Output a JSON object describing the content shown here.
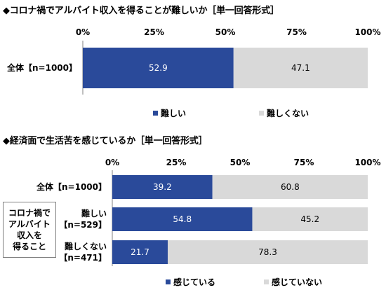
{
  "colors": {
    "primary": "#2a4a9a",
    "secondary": "#d9d9d9",
    "primary_text": "#ffffff",
    "secondary_text": "#000000"
  },
  "chart_data": [
    {
      "type": "bar",
      "orientation": "horizontal",
      "stacked": "100%",
      "title": "◆コロナ禍でアルバイト収入を得ることが難しいか［単一回答形式］",
      "xticks": [
        "0%",
        "25%",
        "50%",
        "75%",
        "100%"
      ],
      "xlim": [
        0,
        100
      ],
      "categories": [
        "全体【n=1000】"
      ],
      "series": [
        {
          "name": "難しい",
          "values": [
            52.9
          ],
          "color": "#2a4a9a"
        },
        {
          "name": "難しくない",
          "values": [
            47.1
          ],
          "color": "#d9d9d9"
        }
      ],
      "legend": "bottom"
    },
    {
      "type": "bar",
      "orientation": "horizontal",
      "stacked": "100%",
      "title": "◆経済面で生活苦を感じているか［単一回答形式］",
      "xticks": [
        "0%",
        "25%",
        "50%",
        "75%",
        "100%"
      ],
      "xlim": [
        0,
        100
      ],
      "group_label": "コロナ禍で\nアルバイト\n収入を\n得ること",
      "categories": [
        "全体【n=1000】",
        "難しい\n【n=529】",
        "難しくない\n【n=471】"
      ],
      "series": [
        {
          "name": "感じている",
          "values": [
            39.2,
            54.8,
            21.7
          ],
          "color": "#2a4a9a"
        },
        {
          "name": "感じていない",
          "values": [
            60.8,
            45.2,
            78.3
          ],
          "color": "#d9d9d9"
        }
      ],
      "legend": "bottom"
    }
  ]
}
